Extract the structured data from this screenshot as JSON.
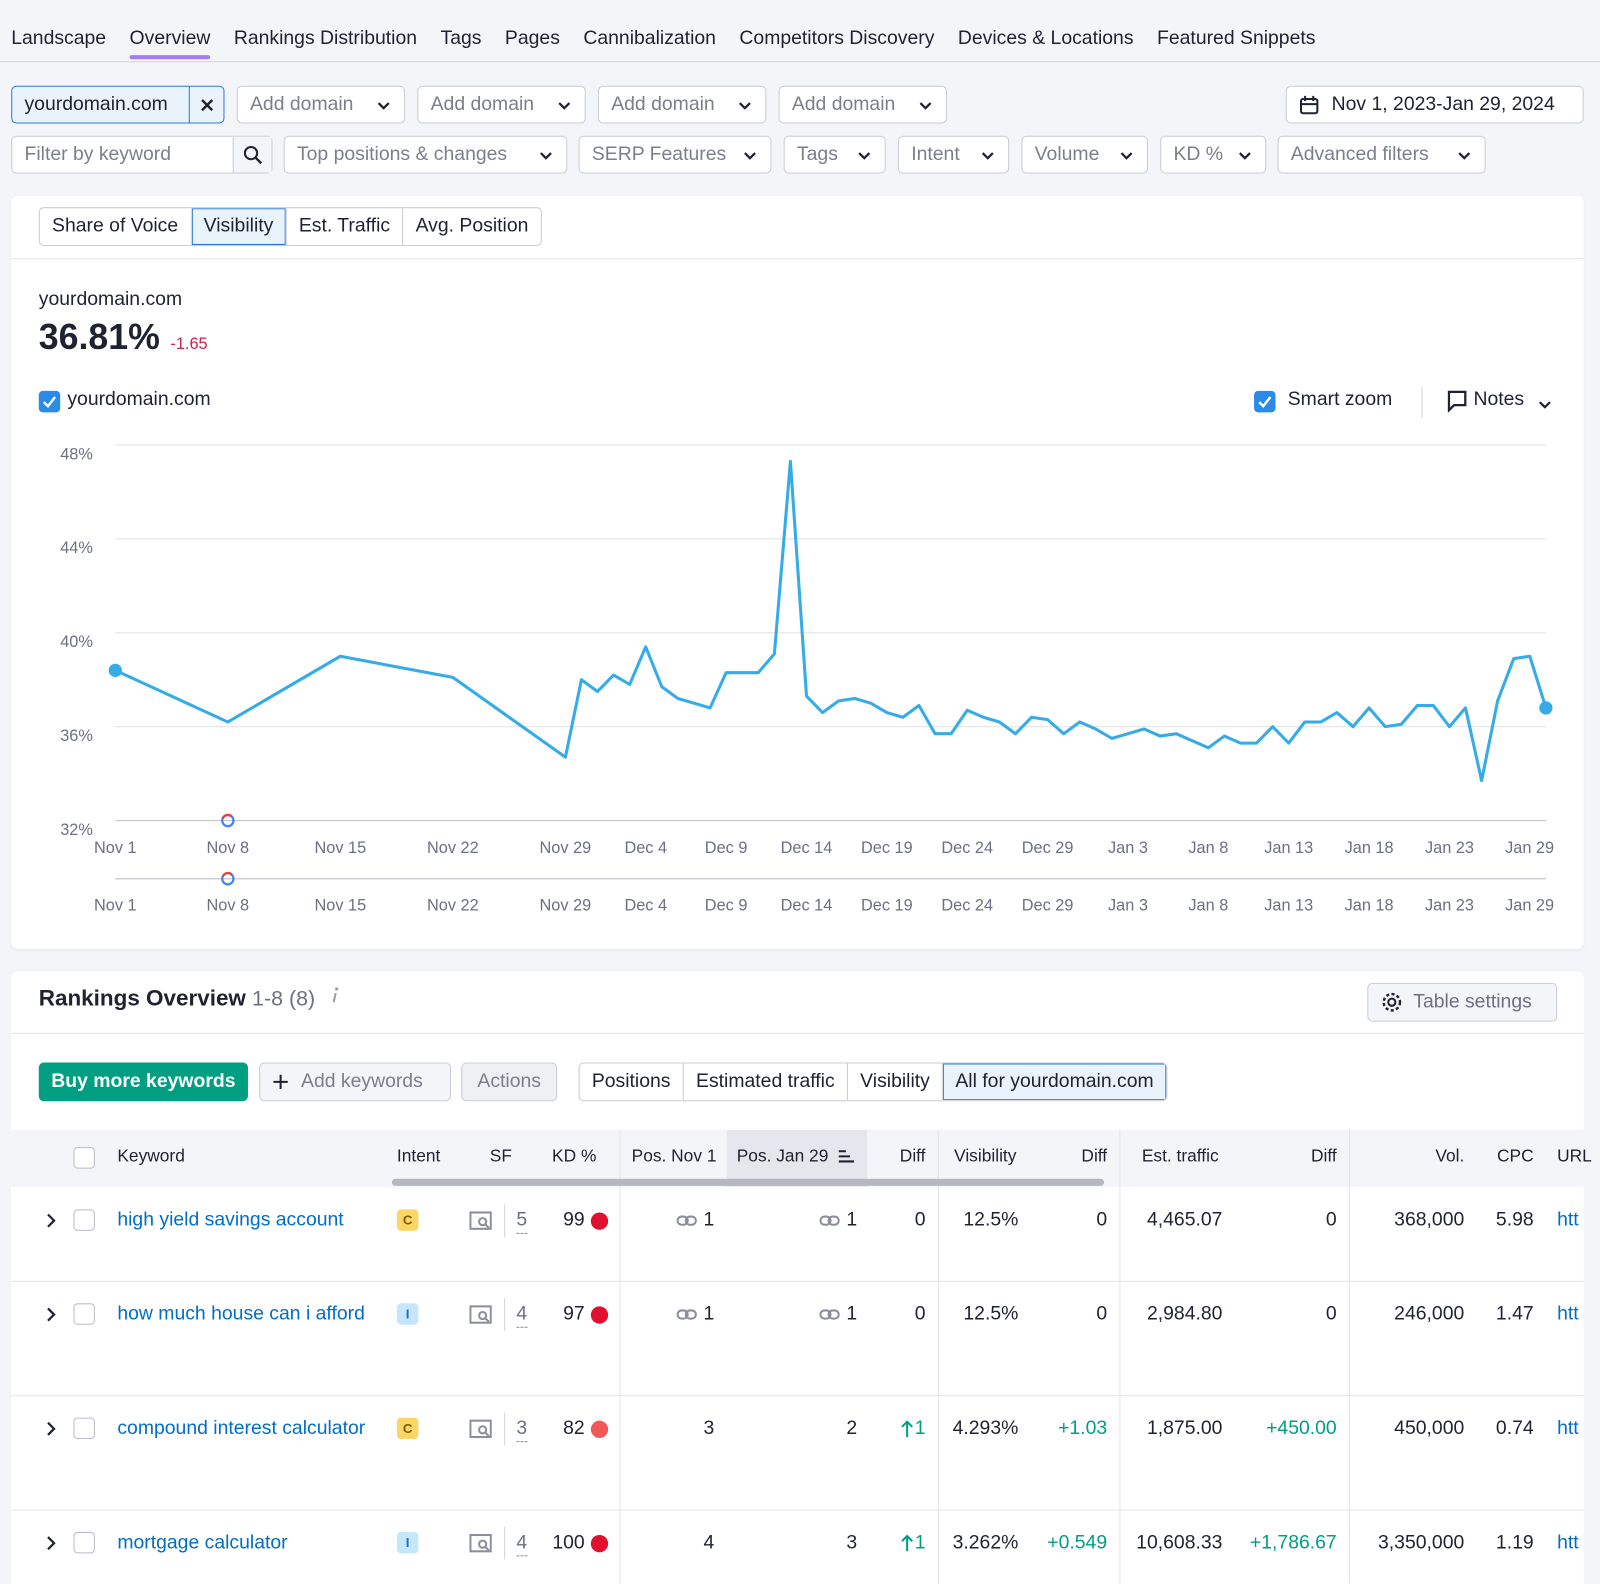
{
  "nav": {
    "tabs": [
      "Landscape",
      "Overview",
      "Rankings Distribution",
      "Tags",
      "Pages",
      "Cannibalization",
      "Competitors Discovery",
      "Devices & Locations",
      "Featured Snippets"
    ]
  },
  "domains": {
    "selected": "yourdomain.com",
    "add": [
      "Add domain",
      "Add domain",
      "Add domain",
      "Add domain"
    ],
    "date_range": "Nov 1, 2023-Jan 29, 2024"
  },
  "filters": {
    "keyword_placeholder": "Filter by keyword",
    "dropdowns": [
      "Top positions & changes",
      "SERP Features",
      "Tags",
      "Intent",
      "Volume",
      "KD %",
      "Advanced filters"
    ]
  },
  "metric_tabs": [
    "Share of Voice",
    "Visibility",
    "Est. Traffic",
    "Avg. Position"
  ],
  "summary": {
    "domain": "yourdomain.com",
    "value": "36.81%",
    "change": "-1.65"
  },
  "legend": {
    "smart_zoom": "Smart zoom",
    "notes": "Notes"
  },
  "chart_data": {
    "type": "line",
    "categories": [
      "Nov 1",
      "Nov 8",
      "Nov 15",
      "Nov 22",
      "Nov 29",
      null,
      null,
      null,
      null,
      "Dec 4",
      null,
      null,
      null,
      null,
      "Dec 9",
      null,
      null,
      null,
      null,
      "Dec 14",
      null,
      null,
      null,
      null,
      "Dec 19",
      null,
      null,
      null,
      null,
      "Dec 24",
      null,
      null,
      null,
      null,
      "Dec 29",
      null,
      null,
      null,
      null,
      "Jan 3",
      null,
      null,
      null,
      null,
      "Jan 8",
      null,
      null,
      null,
      null,
      "Jan 13",
      null,
      null,
      null,
      null,
      "Jan 18",
      null,
      null,
      null,
      null,
      "Jan 23",
      null,
      null,
      null,
      null,
      null,
      "Jan 29"
    ],
    "series": [
      {
        "name": "yourdomain.com",
        "color": "#35abe8",
        "values": [
          38.4,
          36.2,
          39.0,
          38.1,
          34.7,
          38.0,
          37.5,
          38.2,
          37.8,
          39.4,
          37.7,
          37.2,
          37.0,
          36.8,
          38.3,
          38.3,
          38.3,
          39.1,
          47.3,
          37.3,
          36.6,
          37.1,
          37.2,
          37.0,
          36.6,
          36.4,
          36.9,
          35.7,
          35.7,
          36.7,
          36.4,
          36.2,
          35.7,
          36.4,
          36.3,
          35.7,
          36.2,
          35.9,
          35.5,
          35.7,
          35.9,
          35.6,
          35.7,
          35.4,
          35.1,
          35.6,
          35.3,
          35.3,
          36.0,
          35.3,
          36.2,
          36.2,
          36.6,
          36.0,
          36.8,
          36.0,
          36.1,
          36.9,
          36.9,
          36.0,
          36.8,
          33.7,
          37.1,
          38.9,
          39.0,
          36.8
        ]
      }
    ],
    "ylim": [
      32,
      48
    ],
    "yticks": [
      {
        "value": 32,
        "label": "32%"
      },
      {
        "value": 36,
        "label": "36%"
      },
      {
        "value": 40,
        "label": "40%"
      },
      {
        "value": 44,
        "label": "44%"
      },
      {
        "value": 48,
        "label": "48%"
      }
    ],
    "grid": true
  },
  "rankings": {
    "title": "Rankings Overview",
    "range": "1-8 (8)",
    "table_settings": "Table settings",
    "buttons": [
      "Buy more keywords",
      "Add keywords",
      "Actions"
    ],
    "views": [
      "Positions",
      "Estimated traffic",
      "Visibility",
      "All for yourdomain.com"
    ],
    "columns": [
      "Keyword",
      "Intent",
      "SF",
      "KD %",
      "Pos. Nov 1",
      "Pos. Jan 29",
      "Diff",
      "Visibility",
      "Diff",
      "Est. traffic",
      "Diff",
      "Vol.",
      "CPC",
      "URL"
    ],
    "rows": [
      [
        "high yield savings account",
        "C",
        "5",
        "99",
        "1",
        "1",
        "0",
        "12.5%",
        "0",
        "4,465.07",
        "0",
        "368,000",
        "5.98",
        "htt"
      ],
      [
        "how much house can i afford",
        "I",
        "4",
        "97",
        "1",
        "1",
        "0",
        "12.5%",
        "0",
        "2,984.80",
        "0",
        "246,000",
        "1.47",
        "htt"
      ],
      [
        "compound interest calculator",
        "C",
        "3",
        "82",
        "3",
        "2",
        "1",
        "4.293%",
        "+1.03",
        "1,875.00",
        "+450.00",
        "450,000",
        "0.74",
        "htt"
      ],
      [
        "mortgage calculator",
        "I",
        "4",
        "100",
        "4",
        "3",
        "1",
        "3.262%",
        "+0.549",
        "10,608.33",
        "+1,786.67",
        "3,350,000",
        "1.19",
        "htt"
      ]
    ]
  }
}
